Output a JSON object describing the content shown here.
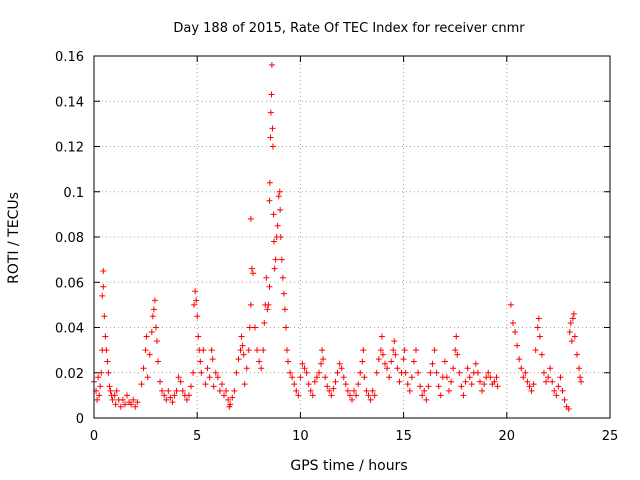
{
  "chart_data": {
    "type": "scatter",
    "title": "Day 188 of 2015, Rate Of TEC Index for receiver cnmr",
    "xlabel": "GPS time / hours",
    "ylabel": "ROTI / TECUs",
    "xlim": [
      0,
      25
    ],
    "ylim": [
      0,
      0.16
    ],
    "xticks": [
      0,
      5,
      10,
      15,
      20,
      25
    ],
    "xtick_labels": [
      "0",
      "5",
      "10",
      "15",
      "20",
      "25"
    ],
    "yticks": [
      0,
      0.02,
      0.04,
      0.06,
      0.08,
      0.1,
      0.12,
      0.14,
      0.16
    ],
    "ytick_labels": [
      "0",
      "0.02",
      "0.04",
      "0.06",
      "0.08",
      "0.1",
      "0.12",
      "0.14",
      "0.16"
    ],
    "grid": true,
    "marker": "+",
    "color": "#ff0000",
    "series": [
      {
        "name": "ROTI",
        "points": [
          [
            0.0,
            0.016
          ],
          [
            0.1,
            0.012
          ],
          [
            0.15,
            0.008
          ],
          [
            0.2,
            0.018
          ],
          [
            0.25,
            0.01
          ],
          [
            0.3,
            0.014
          ],
          [
            0.35,
            0.02
          ],
          [
            0.4,
            0.03
          ],
          [
            0.4,
            0.054
          ],
          [
            0.45,
            0.058
          ],
          [
            0.45,
            0.065
          ],
          [
            0.5,
            0.045
          ],
          [
            0.55,
            0.036
          ],
          [
            0.6,
            0.03
          ],
          [
            0.65,
            0.025
          ],
          [
            0.7,
            0.02
          ],
          [
            0.75,
            0.014
          ],
          [
            0.8,
            0.012
          ],
          [
            0.85,
            0.01
          ],
          [
            0.9,
            0.008
          ],
          [
            1.0,
            0.01
          ],
          [
            1.05,
            0.006
          ],
          [
            1.1,
            0.012
          ],
          [
            1.2,
            0.008
          ],
          [
            1.3,
            0.005
          ],
          [
            1.4,
            0.008
          ],
          [
            1.5,
            0.006
          ],
          [
            1.6,
            0.01
          ],
          [
            1.7,
            0.007
          ],
          [
            1.8,
            0.006
          ],
          [
            1.9,
            0.008
          ],
          [
            2.0,
            0.005
          ],
          [
            2.1,
            0.007
          ],
          [
            2.3,
            0.015
          ],
          [
            2.4,
            0.022
          ],
          [
            2.5,
            0.03
          ],
          [
            2.55,
            0.036
          ],
          [
            2.6,
            0.018
          ],
          [
            2.7,
            0.028
          ],
          [
            2.8,
            0.038
          ],
          [
            2.85,
            0.045
          ],
          [
            2.9,
            0.048
          ],
          [
            2.95,
            0.052
          ],
          [
            3.0,
            0.04
          ],
          [
            3.05,
            0.034
          ],
          [
            3.1,
            0.025
          ],
          [
            3.2,
            0.016
          ],
          [
            3.3,
            0.012
          ],
          [
            3.4,
            0.01
          ],
          [
            3.5,
            0.008
          ],
          [
            3.6,
            0.012
          ],
          [
            3.7,
            0.009
          ],
          [
            3.8,
            0.007
          ],
          [
            3.9,
            0.01
          ],
          [
            4.0,
            0.012
          ],
          [
            4.1,
            0.018
          ],
          [
            4.2,
            0.016
          ],
          [
            4.3,
            0.012
          ],
          [
            4.4,
            0.01
          ],
          [
            4.5,
            0.008
          ],
          [
            4.6,
            0.01
          ],
          [
            4.7,
            0.014
          ],
          [
            4.8,
            0.02
          ],
          [
            4.85,
            0.05
          ],
          [
            4.9,
            0.056
          ],
          [
            4.95,
            0.052
          ],
          [
            5.0,
            0.045
          ],
          [
            5.05,
            0.036
          ],
          [
            5.1,
            0.03
          ],
          [
            5.15,
            0.025
          ],
          [
            5.2,
            0.02
          ],
          [
            5.3,
            0.03
          ],
          [
            5.4,
            0.015
          ],
          [
            5.5,
            0.022
          ],
          [
            5.6,
            0.018
          ],
          [
            5.7,
            0.03
          ],
          [
            5.75,
            0.026
          ],
          [
            5.8,
            0.014
          ],
          [
            5.9,
            0.02
          ],
          [
            6.0,
            0.018
          ],
          [
            6.1,
            0.012
          ],
          [
            6.2,
            0.015
          ],
          [
            6.3,
            0.01
          ],
          [
            6.4,
            0.012
          ],
          [
            6.5,
            0.008
          ],
          [
            6.55,
            0.005
          ],
          [
            6.6,
            0.006
          ],
          [
            6.7,
            0.009
          ],
          [
            6.8,
            0.012
          ],
          [
            6.9,
            0.02
          ],
          [
            7.0,
            0.026
          ],
          [
            7.1,
            0.03
          ],
          [
            7.15,
            0.036
          ],
          [
            7.2,
            0.032
          ],
          [
            7.25,
            0.028
          ],
          [
            7.3,
            0.015
          ],
          [
            7.4,
            0.022
          ],
          [
            7.5,
            0.03
          ],
          [
            7.55,
            0.04
          ],
          [
            7.6,
            0.05
          ],
          [
            7.65,
            0.066
          ],
          [
            7.7,
            0.064
          ],
          [
            7.6,
            0.088
          ],
          [
            7.8,
            0.04
          ],
          [
            7.9,
            0.03
          ],
          [
            8.0,
            0.025
          ],
          [
            8.1,
            0.022
          ],
          [
            8.2,
            0.03
          ],
          [
            8.25,
            0.042
          ],
          [
            8.3,
            0.05
          ],
          [
            8.35,
            0.062
          ],
          [
            8.4,
            0.048
          ],
          [
            8.45,
            0.05
          ],
          [
            8.5,
            0.058
          ],
          [
            8.5,
            0.096
          ],
          [
            8.52,
            0.104
          ],
          [
            8.55,
            0.124
          ],
          [
            8.57,
            0.135
          ],
          [
            8.6,
            0.143
          ],
          [
            8.62,
            0.156
          ],
          [
            8.65,
            0.128
          ],
          [
            8.67,
            0.12
          ],
          [
            8.7,
            0.09
          ],
          [
            8.72,
            0.078
          ],
          [
            8.75,
            0.066
          ],
          [
            8.8,
            0.07
          ],
          [
            8.85,
            0.08
          ],
          [
            8.9,
            0.085
          ],
          [
            8.95,
            0.098
          ],
          [
            9.0,
            0.1
          ],
          [
            9.02,
            0.092
          ],
          [
            9.05,
            0.08
          ],
          [
            9.1,
            0.07
          ],
          [
            9.15,
            0.062
          ],
          [
            9.2,
            0.055
          ],
          [
            9.25,
            0.048
          ],
          [
            9.3,
            0.04
          ],
          [
            9.35,
            0.03
          ],
          [
            9.4,
            0.025
          ],
          [
            9.5,
            0.02
          ],
          [
            9.6,
            0.018
          ],
          [
            9.7,
            0.015
          ],
          [
            9.8,
            0.012
          ],
          [
            9.9,
            0.01
          ],
          [
            10.0,
            0.018
          ],
          [
            10.1,
            0.024
          ],
          [
            10.2,
            0.022
          ],
          [
            10.3,
            0.02
          ],
          [
            10.4,
            0.015
          ],
          [
            10.5,
            0.012
          ],
          [
            10.6,
            0.01
          ],
          [
            10.7,
            0.016
          ],
          [
            10.8,
            0.018
          ],
          [
            10.9,
            0.02
          ],
          [
            11.0,
            0.024
          ],
          [
            11.05,
            0.03
          ],
          [
            11.1,
            0.026
          ],
          [
            11.2,
            0.018
          ],
          [
            11.3,
            0.014
          ],
          [
            11.4,
            0.012
          ],
          [
            11.5,
            0.01
          ],
          [
            11.6,
            0.013
          ],
          [
            11.7,
            0.016
          ],
          [
            11.8,
            0.02
          ],
          [
            11.9,
            0.024
          ],
          [
            12.0,
            0.022
          ],
          [
            12.1,
            0.018
          ],
          [
            12.2,
            0.015
          ],
          [
            12.3,
            0.012
          ],
          [
            12.4,
            0.01
          ],
          [
            12.5,
            0.008
          ],
          [
            12.6,
            0.012
          ],
          [
            12.7,
            0.01
          ],
          [
            12.8,
            0.015
          ],
          [
            12.9,
            0.02
          ],
          [
            13.0,
            0.025
          ],
          [
            13.05,
            0.03
          ],
          [
            13.1,
            0.018
          ],
          [
            13.2,
            0.012
          ],
          [
            13.3,
            0.01
          ],
          [
            13.4,
            0.008
          ],
          [
            13.5,
            0.012
          ],
          [
            13.6,
            0.01
          ],
          [
            13.7,
            0.02
          ],
          [
            13.8,
            0.026
          ],
          [
            13.9,
            0.03
          ],
          [
            13.95,
            0.036
          ],
          [
            14.0,
            0.028
          ],
          [
            14.1,
            0.024
          ],
          [
            14.2,
            0.022
          ],
          [
            14.3,
            0.018
          ],
          [
            14.4,
            0.025
          ],
          [
            14.5,
            0.03
          ],
          [
            14.55,
            0.034
          ],
          [
            14.6,
            0.028
          ],
          [
            14.7,
            0.022
          ],
          [
            14.8,
            0.016
          ],
          [
            14.9,
            0.02
          ],
          [
            15.0,
            0.026
          ],
          [
            15.05,
            0.03
          ],
          [
            15.1,
            0.02
          ],
          [
            15.2,
            0.015
          ],
          [
            15.3,
            0.012
          ],
          [
            15.4,
            0.018
          ],
          [
            15.5,
            0.025
          ],
          [
            15.6,
            0.03
          ],
          [
            15.7,
            0.02
          ],
          [
            15.8,
            0.014
          ],
          [
            15.9,
            0.01
          ],
          [
            16.0,
            0.012
          ],
          [
            16.1,
            0.008
          ],
          [
            16.2,
            0.014
          ],
          [
            16.3,
            0.02
          ],
          [
            16.4,
            0.024
          ],
          [
            16.5,
            0.03
          ],
          [
            16.6,
            0.02
          ],
          [
            16.7,
            0.014
          ],
          [
            16.8,
            0.01
          ],
          [
            16.9,
            0.018
          ],
          [
            17.0,
            0.025
          ],
          [
            17.1,
            0.018
          ],
          [
            17.2,
            0.012
          ],
          [
            17.3,
            0.016
          ],
          [
            17.4,
            0.022
          ],
          [
            17.5,
            0.03
          ],
          [
            17.55,
            0.036
          ],
          [
            17.6,
            0.028
          ],
          [
            17.7,
            0.02
          ],
          [
            17.8,
            0.014
          ],
          [
            17.9,
            0.01
          ],
          [
            18.0,
            0.016
          ],
          [
            18.1,
            0.022
          ],
          [
            18.2,
            0.018
          ],
          [
            18.3,
            0.015
          ],
          [
            18.4,
            0.02
          ],
          [
            18.5,
            0.024
          ],
          [
            18.6,
            0.02
          ],
          [
            18.7,
            0.016
          ],
          [
            18.8,
            0.012
          ],
          [
            18.9,
            0.015
          ],
          [
            19.0,
            0.018
          ],
          [
            19.1,
            0.02
          ],
          [
            19.2,
            0.018
          ],
          [
            19.3,
            0.015
          ],
          [
            19.4,
            0.016
          ],
          [
            19.5,
            0.018
          ],
          [
            19.55,
            0.014
          ],
          [
            20.2,
            0.05
          ],
          [
            20.3,
            0.042
          ],
          [
            20.4,
            0.038
          ],
          [
            20.5,
            0.032
          ],
          [
            20.6,
            0.026
          ],
          [
            20.7,
            0.022
          ],
          [
            20.8,
            0.018
          ],
          [
            20.9,
            0.02
          ],
          [
            21.0,
            0.016
          ],
          [
            21.1,
            0.014
          ],
          [
            21.2,
            0.012
          ],
          [
            21.3,
            0.015
          ],
          [
            21.4,
            0.03
          ],
          [
            21.5,
            0.04
          ],
          [
            21.55,
            0.044
          ],
          [
            21.6,
            0.036
          ],
          [
            21.7,
            0.028
          ],
          [
            21.8,
            0.02
          ],
          [
            21.9,
            0.016
          ],
          [
            22.0,
            0.018
          ],
          [
            22.1,
            0.022
          ],
          [
            22.2,
            0.016
          ],
          [
            22.3,
            0.012
          ],
          [
            22.4,
            0.01
          ],
          [
            22.5,
            0.014
          ],
          [
            22.6,
            0.018
          ],
          [
            22.7,
            0.012
          ],
          [
            22.8,
            0.008
          ],
          [
            22.9,
            0.005
          ],
          [
            23.0,
            0.004
          ],
          [
            23.05,
            0.038
          ],
          [
            23.1,
            0.042
          ],
          [
            23.15,
            0.034
          ],
          [
            23.2,
            0.044
          ],
          [
            23.25,
            0.046
          ],
          [
            23.3,
            0.036
          ],
          [
            23.4,
            0.028
          ],
          [
            23.5,
            0.022
          ],
          [
            23.55,
            0.018
          ],
          [
            23.6,
            0.016
          ]
        ]
      }
    ]
  }
}
